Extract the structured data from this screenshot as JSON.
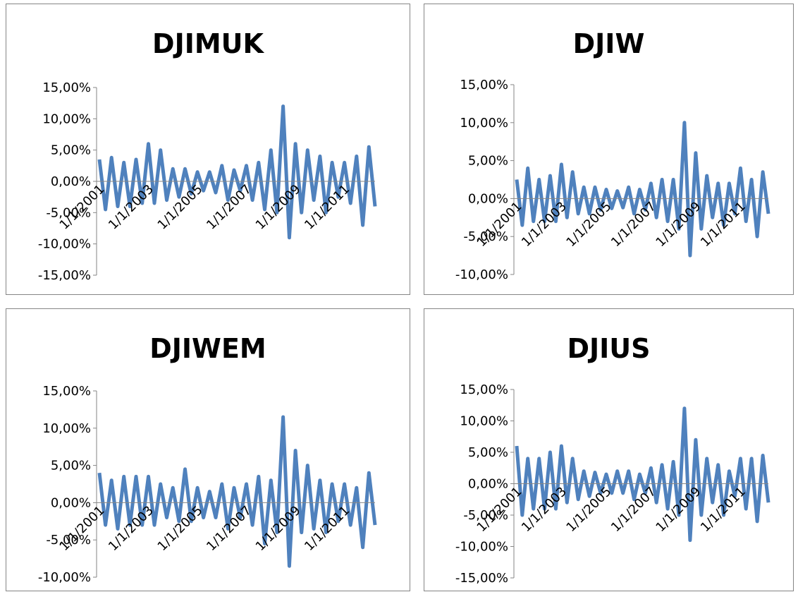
{
  "chart_data": [
    {
      "type": "line",
      "title": "DJIMUK",
      "color": "#4f81bd",
      "x": [
        "1/1/2001",
        "4/1/2001",
        "7/1/2001",
        "10/1/2001",
        "1/1/2002",
        "4/1/2002",
        "7/1/2002",
        "10/1/2002",
        "1/1/2003",
        "4/1/2003",
        "7/1/2003",
        "10/1/2003",
        "1/1/2004",
        "4/1/2004",
        "7/1/2004",
        "10/1/2004",
        "1/1/2005",
        "4/1/2005",
        "7/1/2005",
        "10/1/2005",
        "1/1/2006",
        "4/1/2006",
        "7/1/2006",
        "10/1/2006",
        "1/1/2007",
        "4/1/2007",
        "7/1/2007",
        "10/1/2007",
        "1/1/2008",
        "4/1/2008",
        "7/1/2008",
        "10/1/2008",
        "1/1/2009",
        "4/1/2009",
        "7/1/2009",
        "10/1/2009",
        "1/1/2010",
        "4/1/2010",
        "7/1/2010",
        "10/1/2010",
        "1/1/2011",
        "4/1/2011",
        "7/1/2011",
        "10/1/2011",
        "1/1/2012",
        "4/1/2012"
      ],
      "values": [
        3.5,
        -4.5,
        3.8,
        -4,
        3,
        -4,
        3.5,
        -3.5,
        6,
        -3.5,
        5,
        -3,
        2,
        -2.5,
        2,
        -2,
        1.5,
        -1.5,
        1.5,
        -1.8,
        2.5,
        -3,
        1.8,
        -1.5,
        2.5,
        -3,
        3,
        -4.5,
        5,
        -5,
        12,
        -9,
        6,
        -5,
        5,
        -3,
        4,
        -5,
        3,
        -2.5,
        3,
        -3.5,
        4,
        -7,
        5.5,
        -4
      ],
      "ylim": [
        -15,
        15
      ],
      "yticks": [
        {
          "value": -15,
          "label": "-15,00%"
        },
        {
          "value": -10,
          "label": "-10,00%"
        },
        {
          "value": -5,
          "label": "-5,00%"
        },
        {
          "value": 0,
          "label": "0,00%"
        },
        {
          "value": 5,
          "label": "5,00%"
        },
        {
          "value": 10,
          "label": "10,00%"
        },
        {
          "value": 15,
          "label": "15,00%"
        }
      ],
      "xticks": [
        "1/1/2001",
        "1/1/2003",
        "1/1/2005",
        "1/1/2007",
        "1/1/2009",
        "1/1/2011"
      ]
    },
    {
      "type": "line",
      "title": "DJIW",
      "color": "#4f81bd",
      "x": [
        "1/1/2001",
        "4/1/2001",
        "7/1/2001",
        "10/1/2001",
        "1/1/2002",
        "4/1/2002",
        "7/1/2002",
        "10/1/2002",
        "1/1/2003",
        "4/1/2003",
        "7/1/2003",
        "10/1/2003",
        "1/1/2004",
        "4/1/2004",
        "7/1/2004",
        "10/1/2004",
        "1/1/2005",
        "4/1/2005",
        "7/1/2005",
        "10/1/2005",
        "1/1/2006",
        "4/1/2006",
        "7/1/2006",
        "10/1/2006",
        "1/1/2007",
        "4/1/2007",
        "7/1/2007",
        "10/1/2007",
        "1/1/2008",
        "4/1/2008",
        "7/1/2008",
        "10/1/2008",
        "1/1/2009",
        "4/1/2009",
        "7/1/2009",
        "10/1/2009",
        "1/1/2010",
        "4/1/2010",
        "7/1/2010",
        "10/1/2010",
        "1/1/2011",
        "4/1/2011",
        "7/1/2011",
        "10/1/2011",
        "1/1/2012",
        "4/1/2012"
      ],
      "values": [
        2.5,
        -3.5,
        4,
        -3,
        2.5,
        -3,
        3,
        -3,
        4.5,
        -2.5,
        3.5,
        -2,
        1.5,
        -2,
        1.5,
        -1.5,
        1.2,
        -1.3,
        1,
        -1.2,
        1.5,
        -2,
        1.2,
        -1.5,
        2,
        -2.5,
        2.5,
        -3,
        2.5,
        -4,
        10,
        -7.5,
        6,
        -4,
        3,
        -2.5,
        2,
        -3.5,
        2,
        -2,
        4,
        -3,
        2.5,
        -5,
        3.5,
        -2
      ],
      "ylim": [
        -10,
        15
      ],
      "yticks": [
        {
          "value": -10,
          "label": "-10,00%"
        },
        {
          "value": -5,
          "label": "-5,00%"
        },
        {
          "value": 0,
          "label": "0,00%"
        },
        {
          "value": 5,
          "label": "5,00%"
        },
        {
          "value": 10,
          "label": "10,00%"
        },
        {
          "value": 15,
          "label": "15,00%"
        }
      ],
      "xticks": [
        "1/1/2001",
        "1/1/2003",
        "1/1/2005",
        "1/1/2007",
        "1/1/2009",
        "1/1/2011"
      ]
    },
    {
      "type": "line",
      "title": "DJIWEM",
      "color": "#4f81bd",
      "x": [
        "1/1/2001",
        "4/1/2001",
        "7/1/2001",
        "10/1/2001",
        "1/1/2002",
        "4/1/2002",
        "7/1/2002",
        "10/1/2002",
        "1/1/2003",
        "4/1/2003",
        "7/1/2003",
        "10/1/2003",
        "1/1/2004",
        "4/1/2004",
        "7/1/2004",
        "10/1/2004",
        "1/1/2005",
        "4/1/2005",
        "7/1/2005",
        "10/1/2005",
        "1/1/2006",
        "4/1/2006",
        "7/1/2006",
        "10/1/2006",
        "1/1/2007",
        "4/1/2007",
        "7/1/2007",
        "10/1/2007",
        "1/1/2008",
        "4/1/2008",
        "7/1/2008",
        "10/1/2008",
        "1/1/2009",
        "4/1/2009",
        "7/1/2009",
        "10/1/2009",
        "1/1/2010",
        "4/1/2010",
        "7/1/2010",
        "10/1/2010",
        "1/1/2011",
        "4/1/2011",
        "7/1/2011",
        "10/1/2011",
        "1/1/2012",
        "4/1/2012"
      ],
      "values": [
        4,
        -3,
        3,
        -3.5,
        3.5,
        -3,
        3.5,
        -3,
        3.5,
        -3,
        2.5,
        -2,
        2,
        -2.5,
        4.5,
        -2.5,
        2,
        -2,
        1.5,
        -2,
        2.5,
        -3.5,
        2,
        -2,
        2.5,
        -3,
        3.5,
        -5.5,
        3,
        -4,
        11.5,
        -8.5,
        7,
        -4,
        5,
        -3.5,
        3,
        -4,
        2.5,
        -2.5,
        2.5,
        -3,
        2,
        -6,
        4,
        -3
      ],
      "ylim": [
        -10,
        15
      ],
      "yticks": [
        {
          "value": -10,
          "label": "-10,00%"
        },
        {
          "value": -5,
          "label": "-5,00%"
        },
        {
          "value": 0,
          "label": "0,00%"
        },
        {
          "value": 5,
          "label": "5,00%"
        },
        {
          "value": 10,
          "label": "10,00%"
        },
        {
          "value": 15,
          "label": "15,00%"
        }
      ],
      "xticks": [
        "1/1/2001",
        "1/1/2003",
        "1/1/2005",
        "1/1/2007",
        "1/1/2009",
        "1/1/2011"
      ]
    },
    {
      "type": "line",
      "title": "DJIUS",
      "color": "#4f81bd",
      "x": [
        "1/1/2001",
        "4/1/2001",
        "7/1/2001",
        "10/1/2001",
        "1/1/2002",
        "4/1/2002",
        "7/1/2002",
        "10/1/2002",
        "1/1/2003",
        "4/1/2003",
        "7/1/2003",
        "10/1/2003",
        "1/1/2004",
        "4/1/2004",
        "7/1/2004",
        "10/1/2004",
        "1/1/2005",
        "4/1/2005",
        "7/1/2005",
        "10/1/2005",
        "1/1/2006",
        "4/1/2006",
        "7/1/2006",
        "10/1/2006",
        "1/1/2007",
        "4/1/2007",
        "7/1/2007",
        "10/1/2007",
        "1/1/2008",
        "4/1/2008",
        "7/1/2008",
        "10/1/2008",
        "1/1/2009",
        "4/1/2009",
        "7/1/2009",
        "10/1/2009",
        "1/1/2010",
        "4/1/2010",
        "7/1/2010",
        "10/1/2010",
        "1/1/2011",
        "4/1/2011",
        "7/1/2011",
        "10/1/2011",
        "1/1/2012",
        "4/1/2012"
      ],
      "values": [
        6,
        -5,
        4,
        -4,
        4,
        -4,
        5,
        -4,
        6,
        -3,
        4,
        -2.5,
        2,
        -2,
        1.8,
        -1.5,
        1.5,
        -1.5,
        2,
        -1.5,
        2,
        -2.5,
        1.5,
        -1.5,
        2.5,
        -3,
        3,
        -4,
        3.5,
        -5,
        12,
        -9,
        7,
        -5,
        4,
        -3,
        3,
        -5,
        2,
        -2,
        4,
        -4,
        4,
        -6,
        4.5,
        -3
      ],
      "ylim": [
        -15,
        15
      ],
      "yticks": [
        {
          "value": -15,
          "label": "-15,00%"
        },
        {
          "value": -10,
          "label": "-10,00%"
        },
        {
          "value": -5,
          "label": "-5,00%"
        },
        {
          "value": 0,
          "label": "0,00%"
        },
        {
          "value": 5,
          "label": "5,00%"
        },
        {
          "value": 10,
          "label": "10,00%"
        },
        {
          "value": 15,
          "label": "15,00%"
        }
      ],
      "xticks": [
        "1/1/2001",
        "1/1/2003",
        "1/1/2005",
        "1/1/2007",
        "1/1/2009",
        "1/1/2011"
      ]
    }
  ]
}
